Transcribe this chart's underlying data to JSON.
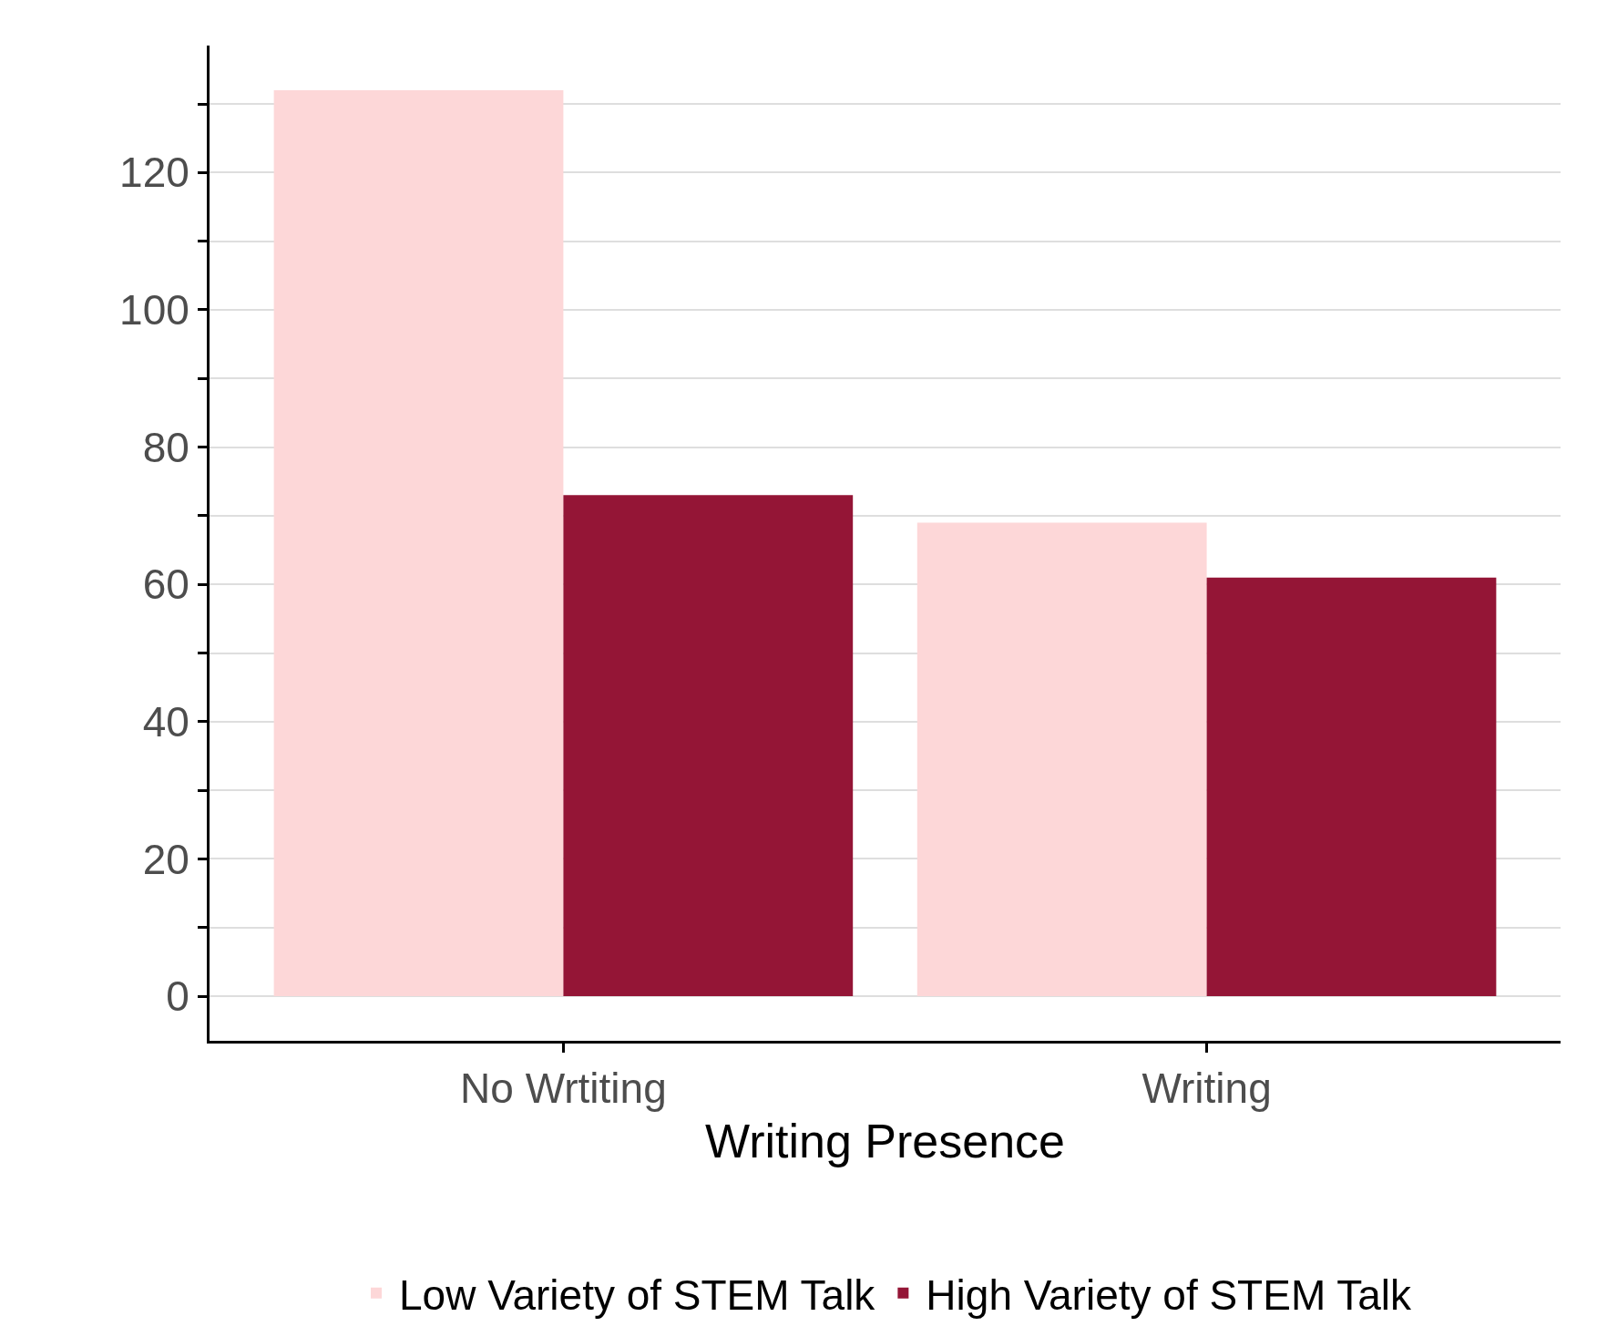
{
  "chart_data": {
    "type": "bar",
    "xlabel": "Writing Presence",
    "categories": [
      "No Wrtiting",
      "Writing"
    ],
    "series": [
      {
        "name": "Low Variety of STEM Talk",
        "color": "#fdd7d8",
        "values": [
          132,
          69
        ]
      },
      {
        "name": "High Variety of STEM Talk",
        "color": "#941536",
        "values": [
          73,
          61
        ]
      }
    ],
    "ylim": [
      -6.5,
      138.5
    ],
    "yticks": [
      0,
      {
        "value": 10,
        "label": null
      },
      20,
      {
        "value": 30,
        "label": null
      },
      40,
      {
        "value": 50,
        "label": null
      },
      60,
      {
        "value": 70,
        "label": null
      },
      80,
      {
        "value": 90,
        "label": null
      },
      100,
      {
        "value": 110,
        "label": null
      },
      120,
      {
        "value": 130,
        "label": null
      }
    ],
    "grid": "y",
    "legend": "bottom"
  }
}
